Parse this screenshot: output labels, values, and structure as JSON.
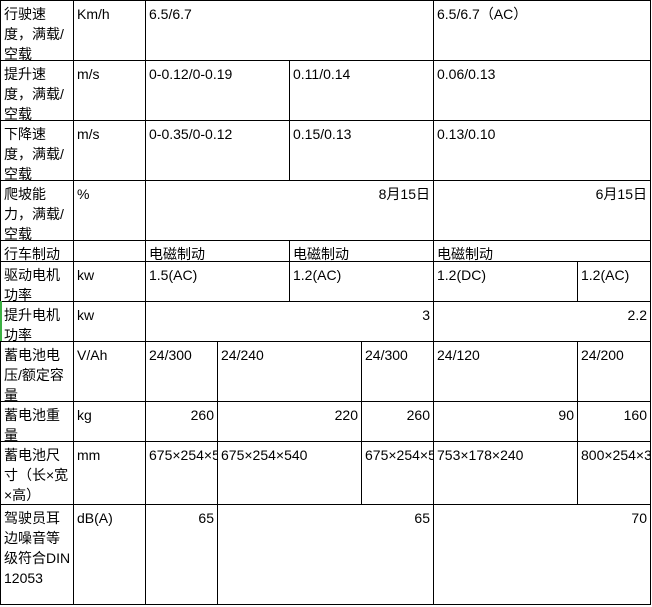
{
  "rows": [
    {
      "label": "行驶速度，满载/空载",
      "unit": "Km/h",
      "cells": [
        "6.5/6.7",
        "6.5/6.7（AC）"
      ]
    },
    {
      "label": "提升速度，满载/空载",
      "unit": "m/s",
      "cells": [
        "0-0.12/0-0.19",
        "0.11/0.14",
        "0.06/0.13"
      ]
    },
    {
      "label": "下降速度，满载/空载",
      "unit": "m/s",
      "cells": [
        "0-0.35/0-0.12",
        "0.15/0.13",
        "0.13/0.10"
      ]
    },
    {
      "label": "爬坡能力，满载/空载",
      "unit": "%",
      "cells": [
        "8月15日",
        "6月15日"
      ]
    },
    {
      "label": "行车制动",
      "unit": "",
      "cells": [
        "电磁制动",
        "电磁制动",
        "电磁制动"
      ]
    },
    {
      "label": "驱动电机功率",
      "unit": "kw",
      "cells": [
        "1.5(AC)",
        "1.2(AC)",
        "1.2(DC)",
        "1.2(AC)"
      ]
    },
    {
      "label": "提升电机功率",
      "unit": "kw",
      "cells": [
        "3",
        "2.2"
      ]
    },
    {
      "label": "蓄电池电压/额定容量",
      "unit": "V/Ah",
      "cells": [
        "24/300",
        "24/240",
        "24/300",
        "24/120",
        "24/200"
      ]
    },
    {
      "label": "蓄电池重量",
      "unit": "kg",
      "cells": [
        "260",
        "220",
        "260",
        "90",
        "160"
      ]
    },
    {
      "label": "蓄电池尺寸（长×宽×高）",
      "unit": "mm",
      "cells": [
        "675×254×540",
        "675×254×540",
        "675×254×540",
        "753×178×240",
        "800×254×320"
      ]
    },
    {
      "label": "驾驶员耳边噪音等级符合DIN12053",
      "unit": "dB(A)",
      "cells": [
        "65",
        "65",
        "70"
      ]
    }
  ]
}
